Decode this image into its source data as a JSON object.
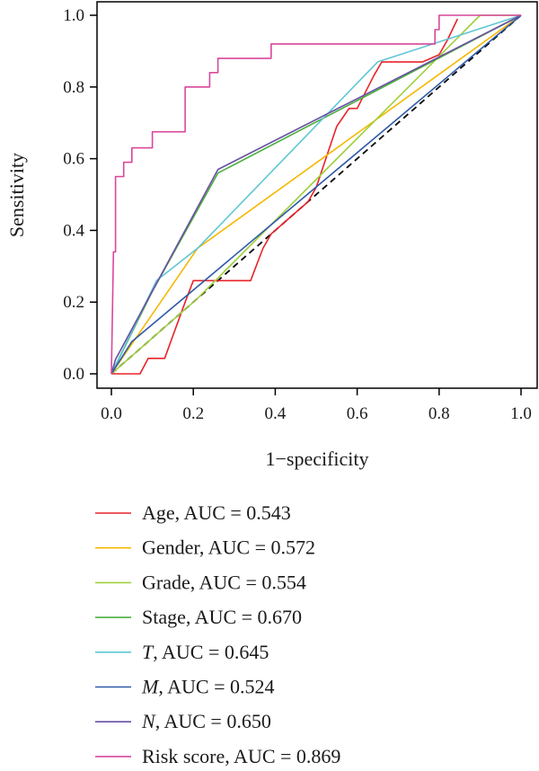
{
  "chart_data": {
    "type": "line",
    "xlabel": "1−specificity",
    "ylabel": "Sensitivity",
    "xlim": [
      0.0,
      1.0
    ],
    "ylim": [
      0.0,
      1.0
    ],
    "x_ticks": [
      "0.0",
      "0.2",
      "0.4",
      "0.6",
      "0.8",
      "1.0"
    ],
    "y_ticks": [
      "0.0",
      "0.2",
      "0.4",
      "0.6",
      "0.8",
      "1.0"
    ],
    "legend_position": "bottom",
    "diagonal_reference": true,
    "series": [
      {
        "name": "Age",
        "italic": false,
        "auc_label": ", AUC = 0.543",
        "color": "#e8232a",
        "points": [
          [
            0,
            0
          ],
          [
            0.07,
            0
          ],
          [
            0.09,
            0.043
          ],
          [
            0.13,
            0.043
          ],
          [
            0.18,
            0.2
          ],
          [
            0.2,
            0.26
          ],
          [
            0.34,
            0.26
          ],
          [
            0.37,
            0.35
          ],
          [
            0.39,
            0.39
          ],
          [
            0.43,
            0.43
          ],
          [
            0.48,
            0.48
          ],
          [
            0.5,
            0.52
          ],
          [
            0.55,
            0.69
          ],
          [
            0.58,
            0.74
          ],
          [
            0.6,
            0.74
          ],
          [
            0.64,
            0.83
          ],
          [
            0.66,
            0.87
          ],
          [
            0.72,
            0.87
          ],
          [
            0.76,
            0.87
          ],
          [
            0.8,
            0.89
          ],
          [
            0.82,
            0.93
          ],
          [
            0.845,
            0.99
          ]
        ]
      },
      {
        "name": "Gender",
        "italic": false,
        "auc_label": ", AUC = 0.572",
        "color": "#f5b800",
        "points": [
          [
            0,
            0
          ],
          [
            0.21,
            0.35
          ],
          [
            1.0,
            1.0
          ]
        ]
      },
      {
        "name": "Grade",
        "italic": false,
        "auc_label": ", AUC = 0.554",
        "color": "#9fcf3c",
        "points": [
          [
            0,
            0
          ],
          [
            0.21,
            0.21
          ],
          [
            0.9,
            1.0
          ],
          [
            1.0,
            1.0
          ]
        ]
      },
      {
        "name": "Stage",
        "italic": false,
        "auc_label": ", AUC = 0.670",
        "color": "#4caf3e",
        "points": [
          [
            0,
            0
          ],
          [
            0.1,
            0.23
          ],
          [
            0.26,
            0.56
          ],
          [
            1.0,
            1.0
          ]
        ]
      },
      {
        "name": "T",
        "italic": true,
        "auc_label": ", AUC = 0.645",
        "color": "#5fc6d3",
        "points": [
          [
            0,
            0
          ],
          [
            0.11,
            0.26
          ],
          [
            0.21,
            0.35
          ],
          [
            0.65,
            0.87
          ],
          [
            1.0,
            1.0
          ]
        ]
      },
      {
        "name": "M",
        "italic": true,
        "auc_label": ", AUC = 0.524",
        "color": "#2f5aa8",
        "points": [
          [
            0,
            0
          ],
          [
            0.05,
            0.09
          ],
          [
            1.0,
            1.0
          ]
        ]
      },
      {
        "name": "N",
        "italic": true,
        "auc_label": ", AUC = 0.650",
        "color": "#6a4fa6",
        "points": [
          [
            0,
            0
          ],
          [
            0.01,
            0.04
          ],
          [
            0.26,
            0.57
          ],
          [
            1.0,
            1.0
          ]
        ]
      },
      {
        "name": "Risk score",
        "italic": false,
        "auc_label": ", AUC = 0.869",
        "color": "#d9479c",
        "points": [
          [
            0,
            0
          ],
          [
            0.005,
            0.34
          ],
          [
            0.01,
            0.34
          ],
          [
            0.01,
            0.55
          ],
          [
            0.03,
            0.55
          ],
          [
            0.03,
            0.59
          ],
          [
            0.05,
            0.59
          ],
          [
            0.05,
            0.63
          ],
          [
            0.1,
            0.63
          ],
          [
            0.1,
            0.675
          ],
          [
            0.18,
            0.675
          ],
          [
            0.18,
            0.8
          ],
          [
            0.24,
            0.8
          ],
          [
            0.24,
            0.84
          ],
          [
            0.26,
            0.84
          ],
          [
            0.26,
            0.88
          ],
          [
            0.39,
            0.88
          ],
          [
            0.39,
            0.92
          ],
          [
            0.79,
            0.92
          ],
          [
            0.79,
            0.96
          ],
          [
            0.8,
            0.96
          ],
          [
            0.8,
            1.0
          ],
          [
            1.0,
            1.0
          ]
        ]
      }
    ]
  }
}
